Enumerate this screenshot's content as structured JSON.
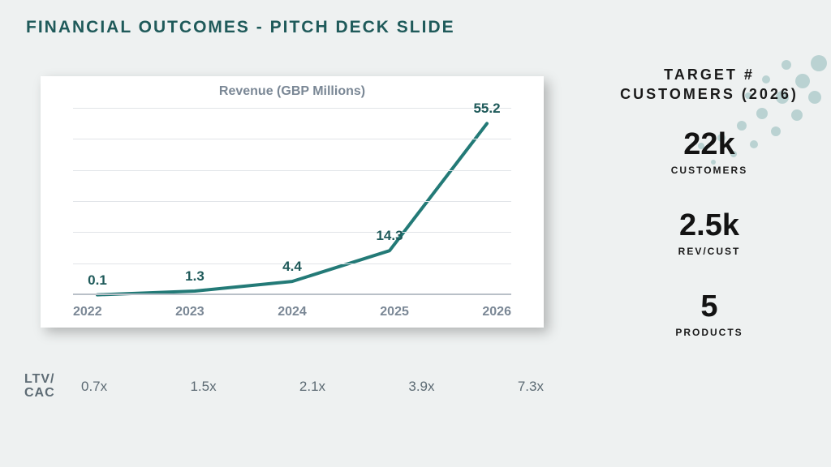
{
  "slide": {
    "title": "FINANCIAL OUTCOMES - PITCH DECK SLIDE",
    "background_color": "#eef1f1",
    "accent_color": "#1f5a5a"
  },
  "chart": {
    "type": "line",
    "title": "Revenue (GBP Millions)",
    "title_color": "#7a8795",
    "title_fontsize": 16,
    "card_bg": "#ffffff",
    "shadow": "6px 6px 14px rgba(0,0,0,0.25)",
    "x_labels": [
      "2022",
      "2023",
      "2024",
      "2025",
      "2026"
    ],
    "values": [
      0.1,
      1.3,
      4.4,
      14.3,
      55.2
    ],
    "ylim": [
      0,
      60
    ],
    "grid_steps": 6,
    "grid_color": "#e1e4e8",
    "axis_color": "#b9c0c8",
    "line_color": "#237a77",
    "line_width": 4,
    "label_color": "#1f5a5a",
    "label_fontsize": 17,
    "xlabel_color": "#7a8795",
    "xlabel_fontsize": 16
  },
  "ltv": {
    "label_line1": "LTV/",
    "label_line2": "CAC",
    "values": [
      "0.7x",
      "1.5x",
      "2.1x",
      "3.9x",
      "7.3x"
    ],
    "color": "#5d6b74",
    "fontsize": 17
  },
  "targets": {
    "header_line1": "TARGET #",
    "header_line2": "CUSTOMERS (2026)",
    "metrics": [
      {
        "value": "22k",
        "label": "CUSTOMERS"
      },
      {
        "value": "2.5k",
        "label": "REV/CUST"
      },
      {
        "value": "5",
        "label": "PRODUCTS"
      }
    ],
    "value_color": "#131313",
    "value_fontsize": 38,
    "label_fontsize": 12
  },
  "decorative": {
    "dot_color": "#237a77"
  }
}
